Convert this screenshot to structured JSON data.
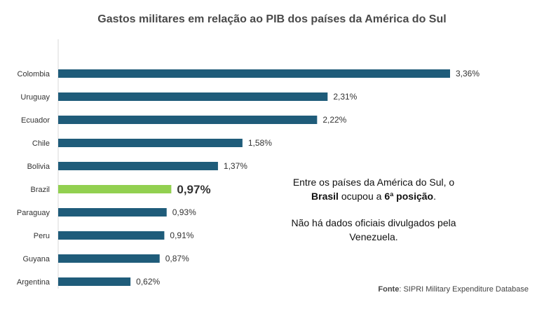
{
  "chart_data": {
    "type": "bar",
    "orientation": "horizontal",
    "title": "Gastos militares em relação ao PIB dos países da América do Sul",
    "categories": [
      "Colombia",
      "Uruguay",
      "Ecuador",
      "Chile",
      "Bolivia",
      "Brazil",
      "Paraguay",
      "Peru",
      "Guyana",
      "Argentina"
    ],
    "values": [
      3.36,
      2.31,
      2.22,
      1.58,
      1.37,
      0.97,
      0.93,
      0.91,
      0.87,
      0.62
    ],
    "value_labels": [
      "3,36%",
      "2,31%",
      "2,22%",
      "1,58%",
      "1,37%",
      "0,97%",
      "0,93%",
      "0,91%",
      "0,87%",
      "0,62%"
    ],
    "highlight_category": "Brazil",
    "xlim": [
      0,
      3.36
    ],
    "grid": false,
    "colors": {
      "bar": "#1f5c7a",
      "highlight_bar": "#92d050",
      "highlight_label": "#c55a11",
      "axis": "#d9d9d9"
    }
  },
  "annotation": {
    "line1_before": "Entre os países da América do Sul, o ",
    "line1_bold": "Brasil",
    "line1_mid": " ocupou a ",
    "line1_bold2": "6ª posição",
    "line1_after": ".",
    "line2": "Não há dados oficiais divulgados pela Venezuela."
  },
  "source": {
    "label": "Fonte",
    "sep": ": ",
    "text": "SIPRI Military Expenditure Database"
  }
}
